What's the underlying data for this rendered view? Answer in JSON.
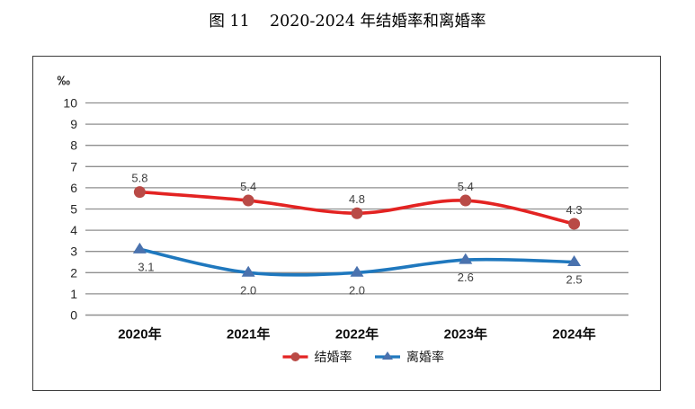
{
  "page": {
    "title": "图 11    2020-2024 年结婚率和离婚率"
  },
  "chart_data": {
    "type": "line",
    "title": "图 11    2020-2024 年结婚率和离婚率",
    "unit_label": "‰",
    "categories": [
      "2020年",
      "2021年",
      "2022年",
      "2023年",
      "2024年"
    ],
    "series": [
      {
        "name": "结婚率",
        "values": [
          5.8,
          5.4,
          4.8,
          5.4,
          4.3
        ],
        "labels": [
          "5.8",
          "5.4",
          "4.8",
          "5.4",
          "4.3"
        ],
        "line_color": "#e32322",
        "marker_color": "#b94a46",
        "marker": "circle",
        "label_position": "above"
      },
      {
        "name": "离婚率",
        "values": [
          3.1,
          2.0,
          2.0,
          2.6,
          2.5
        ],
        "labels": [
          "3.1",
          "2.0",
          "2.0",
          "2.6",
          "2.5"
        ],
        "line_color": "#1f78be",
        "marker_color": "#4a72ae",
        "marker": "triangle-up",
        "label_position": "below"
      }
    ],
    "ylim": [
      0,
      10
    ],
    "ytick_step": 1,
    "grid": true,
    "smoothed_lines": true,
    "legend_position": "bottom",
    "colors": {
      "gridline": "#8f8f8f",
      "tick_text": "#262626",
      "data_label": "#404040",
      "axis_label": "#0d0d0d",
      "legend_text": "#1a1a1a",
      "frame_border": "#3c3c3c",
      "background": "#ffffff"
    }
  }
}
